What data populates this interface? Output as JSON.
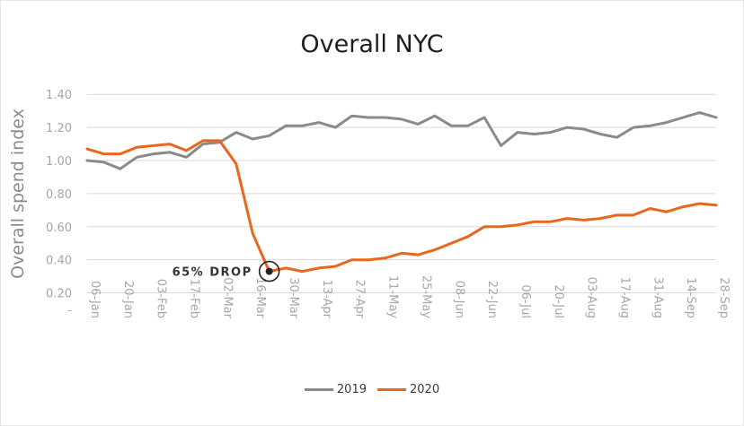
{
  "chart_data": {
    "type": "line",
    "title": "Overall NYC",
    "xlabel": "",
    "ylabel": "Overall spend index",
    "ylim": [
      0.1,
      1.45
    ],
    "yticks": [
      "1.40",
      "1.20",
      "1.00",
      "0.80",
      "0.60",
      "0.40",
      "0.20",
      "-"
    ],
    "xtick_labels": [
      "06-Jan",
      "20-Jan",
      "03-Feb",
      "17-Feb",
      "02-Mar",
      "16-Mar",
      "30-Mar",
      "13-Apr",
      "27-Apr",
      "11-May",
      "25-May",
      "08-Jun",
      "22-Jun",
      "06-Jul",
      "20-Jul",
      "03-Aug",
      "17-Aug",
      "31-Aug",
      "14-Sep",
      "28-Sep"
    ],
    "series": [
      {
        "name": "2019",
        "color": "#8a8a8a",
        "values": [
          1.0,
          0.99,
          0.95,
          1.02,
          1.04,
          1.05,
          1.02,
          1.1,
          1.11,
          1.17,
          1.13,
          1.15,
          1.21,
          1.21,
          1.23,
          1.2,
          1.27,
          1.26,
          1.26,
          1.25,
          1.22,
          1.27,
          1.21,
          1.21,
          1.26,
          1.09,
          1.17,
          1.16,
          1.17,
          1.2,
          1.19,
          1.16,
          1.14,
          1.2,
          1.21,
          1.23,
          1.26,
          1.29,
          1.26
        ]
      },
      {
        "name": "2020",
        "color": "#e8661e",
        "values": [
          1.07,
          1.04,
          1.04,
          1.08,
          1.09,
          1.1,
          1.06,
          1.12,
          1.12,
          0.98,
          0.56,
          0.33,
          0.35,
          0.33,
          0.35,
          0.36,
          0.4,
          0.4,
          0.41,
          0.44,
          0.43,
          0.46,
          0.5,
          0.54,
          0.6,
          0.6,
          0.61,
          0.63,
          0.63,
          0.65,
          0.64,
          0.65,
          0.67,
          0.67,
          0.71,
          0.69,
          0.72,
          0.74,
          0.73
        ]
      }
    ],
    "annotation": {
      "text": "65% DROP",
      "series": "2020",
      "index": 11
    },
    "grid": "horizontal",
    "legend_position": "bottom"
  }
}
